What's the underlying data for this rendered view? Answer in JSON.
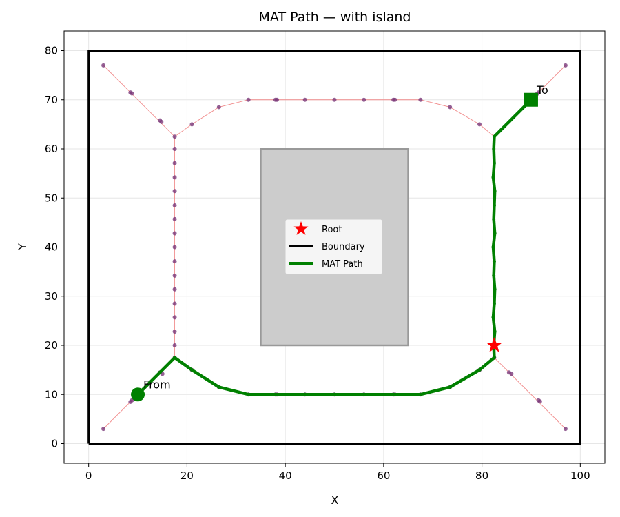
{
  "chart_data": {
    "type": "line",
    "title": "MAT Path — with island",
    "xlabel": "X",
    "ylabel": "Y",
    "xlim": [
      -5,
      105
    ],
    "ylim": [
      -4,
      84
    ],
    "xticks": [
      0,
      20,
      40,
      60,
      80,
      100
    ],
    "yticks": [
      0,
      10,
      20,
      30,
      40,
      50,
      60,
      70,
      80
    ],
    "grid": true,
    "legend_position": "center",
    "colors": {
      "boundary": "#000000",
      "island_fill": "#cccccc",
      "island_edge": "#999999",
      "skeleton_line": "#f08080",
      "skeleton_node": "#7b3a7a",
      "path": "#008000",
      "root": "#ff0000"
    },
    "boundary": [
      [
        0,
        0
      ],
      [
        100,
        0
      ],
      [
        100,
        80
      ],
      [
        0,
        80
      ],
      [
        0,
        0
      ]
    ],
    "island": [
      [
        35,
        20
      ],
      [
        65,
        20
      ],
      [
        65,
        60
      ],
      [
        35,
        60
      ],
      [
        35,
        20
      ]
    ],
    "skeleton_edges": [
      [
        [
          3,
          3
        ],
        [
          8.5,
          8.5
        ],
        [
          10,
          10
        ],
        [
          14.5,
          14.5
        ],
        [
          17.5,
          17.5
        ]
      ],
      [
        [
          17.5,
          17.5
        ],
        [
          21,
          15
        ],
        [
          26.5,
          11.5
        ],
        [
          32.5,
          10
        ],
        [
          38,
          10
        ],
        [
          44,
          10
        ],
        [
          50,
          10
        ],
        [
          56,
          10
        ],
        [
          62,
          10
        ],
        [
          67.5,
          10
        ],
        [
          73.5,
          11.5
        ],
        [
          79.5,
          15
        ],
        [
          82.5,
          17.5
        ]
      ],
      [
        [
          82.5,
          17.5
        ],
        [
          85.5,
          14.5
        ],
        [
          91.5,
          8.5
        ],
        [
          97,
          3
        ]
      ],
      [
        [
          17.5,
          17.5
        ],
        [
          17.5,
          20
        ],
        [
          17.5,
          22.8
        ],
        [
          17.5,
          25.7
        ],
        [
          17.5,
          28.5
        ],
        [
          17.5,
          31.4
        ],
        [
          17.5,
          34.2
        ],
        [
          17.5,
          37.1
        ],
        [
          17.5,
          40
        ],
        [
          17.5,
          42.8
        ],
        [
          17.5,
          45.7
        ],
        [
          17.5,
          48.5
        ],
        [
          17.5,
          51.4
        ],
        [
          17.5,
          54.2
        ],
        [
          17.5,
          57.1
        ],
        [
          17.5,
          60
        ],
        [
          17.5,
          62.5
        ]
      ],
      [
        [
          82.5,
          17.5
        ],
        [
          82.5,
          20
        ],
        [
          82.5,
          22.8
        ],
        [
          82.5,
          25.7
        ],
        [
          82.5,
          28.5
        ],
        [
          82.5,
          31.4
        ],
        [
          82.5,
          34.2
        ],
        [
          82.5,
          37.1
        ],
        [
          82.5,
          40
        ],
        [
          82.5,
          42.8
        ],
        [
          82.5,
          45.7
        ],
        [
          82.5,
          48.5
        ],
        [
          82.5,
          51.4
        ],
        [
          82.5,
          54.2
        ],
        [
          82.5,
          57.1
        ],
        [
          82.5,
          60
        ],
        [
          82.5,
          62.5
        ]
      ],
      [
        [
          3,
          77
        ],
        [
          8.5,
          71.5
        ],
        [
          14.5,
          65.5
        ],
        [
          17.5,
          62.5
        ]
      ],
      [
        [
          17.5,
          62.5
        ],
        [
          21,
          65
        ],
        [
          26.5,
          68.5
        ],
        [
          32.5,
          70
        ],
        [
          38,
          70
        ],
        [
          44,
          70
        ],
        [
          50,
          70
        ],
        [
          56,
          70
        ],
        [
          62,
          70
        ],
        [
          67.5,
          70
        ],
        [
          73.5,
          68.5
        ],
        [
          79.5,
          65
        ],
        [
          82.5,
          62.5
        ]
      ],
      [
        [
          82.5,
          62.5
        ],
        [
          85.5,
          65.5
        ],
        [
          91.5,
          71.5
        ],
        [
          97,
          77
        ]
      ]
    ],
    "skeleton_nodes": [
      [
        3,
        3
      ],
      [
        8.5,
        8.5
      ],
      [
        8.8,
        8.8
      ],
      [
        14.5,
        14.5
      ],
      [
        15,
        14.2
      ],
      [
        17.5,
        17.5
      ],
      [
        21,
        15
      ],
      [
        26.5,
        11.5
      ],
      [
        32.5,
        10
      ],
      [
        38,
        10
      ],
      [
        38.3,
        10
      ],
      [
        44,
        10
      ],
      [
        50,
        10
      ],
      [
        56,
        10
      ],
      [
        62,
        10
      ],
      [
        62.3,
        10
      ],
      [
        67.5,
        10
      ],
      [
        73.5,
        11.5
      ],
      [
        79.5,
        15
      ],
      [
        82.5,
        17.5
      ],
      [
        85.5,
        14.5
      ],
      [
        86,
        14.2
      ],
      [
        91.5,
        8.8
      ],
      [
        91.8,
        8.6
      ],
      [
        97,
        3
      ],
      [
        17.5,
        20
      ],
      [
        17.5,
        22.8
      ],
      [
        17.5,
        25.7
      ],
      [
        17.5,
        28.5
      ],
      [
        17.5,
        31.4
      ],
      [
        17.5,
        34.2
      ],
      [
        17.5,
        37.1
      ],
      [
        17.5,
        40
      ],
      [
        17.5,
        42.8
      ],
      [
        17.5,
        45.7
      ],
      [
        17.5,
        48.5
      ],
      [
        17.5,
        51.4
      ],
      [
        17.5,
        54.2
      ],
      [
        17.5,
        57.1
      ],
      [
        17.5,
        60
      ],
      [
        17.5,
        62.5
      ],
      [
        3,
        77
      ],
      [
        8.5,
        71.5
      ],
      [
        8.8,
        71.3
      ],
      [
        14.5,
        65.8
      ],
      [
        14.8,
        65.5
      ],
      [
        21,
        65
      ],
      [
        26.5,
        68.5
      ],
      [
        32.5,
        70
      ],
      [
        38,
        70
      ],
      [
        38.3,
        70
      ],
      [
        44,
        70
      ],
      [
        50,
        70
      ],
      [
        56,
        70
      ],
      [
        62,
        70
      ],
      [
        62.3,
        70
      ],
      [
        67.5,
        70
      ],
      [
        73.5,
        68.5
      ],
      [
        79.5,
        65
      ],
      [
        91.2,
        71.2
      ],
      [
        91.5,
        71.5
      ],
      [
        97,
        77
      ]
    ],
    "series": [
      {
        "name": "MAT Path",
        "points": [
          [
            10,
            10
          ],
          [
            14.5,
            14.5
          ],
          [
            17.5,
            17.5
          ],
          [
            21,
            15
          ],
          [
            26.5,
            11.5
          ],
          [
            32.5,
            10
          ],
          [
            38,
            10
          ],
          [
            44,
            10
          ],
          [
            50,
            10
          ],
          [
            56,
            10
          ],
          [
            62,
            10
          ],
          [
            67.5,
            10
          ],
          [
            73.5,
            11.5
          ],
          [
            79.5,
            15
          ],
          [
            82.5,
            17.5
          ],
          [
            82.4,
            20
          ],
          [
            82.6,
            22.8
          ],
          [
            82.3,
            25.7
          ],
          [
            82.5,
            28.5
          ],
          [
            82.6,
            31.4
          ],
          [
            82.4,
            34.2
          ],
          [
            82.5,
            37.1
          ],
          [
            82.3,
            40
          ],
          [
            82.6,
            42.8
          ],
          [
            82.4,
            45.7
          ],
          [
            82.5,
            48.5
          ],
          [
            82.6,
            51.4
          ],
          [
            82.3,
            54.2
          ],
          [
            82.5,
            57.1
          ],
          [
            82.4,
            60
          ],
          [
            82.5,
            62.5
          ],
          [
            85.5,
            65.5
          ],
          [
            90,
            70
          ]
        ],
        "markers": [
          [
            14.5,
            14.5
          ],
          [
            17.5,
            17.5
          ],
          [
            21,
            15
          ],
          [
            26.5,
            11.5
          ],
          [
            32.5,
            10
          ],
          [
            38,
            10
          ],
          [
            44,
            10
          ],
          [
            50,
            10
          ],
          [
            56,
            10
          ],
          [
            62,
            10
          ],
          [
            67.5,
            10
          ],
          [
            73.5,
            11.5
          ],
          [
            79.5,
            15
          ],
          [
            82.5,
            17.5
          ],
          [
            82.4,
            20
          ],
          [
            82.6,
            22.8
          ],
          [
            82.3,
            25.7
          ],
          [
            82.5,
            28.5
          ],
          [
            82.6,
            31.4
          ],
          [
            82.4,
            34.2
          ],
          [
            82.5,
            37.1
          ],
          [
            82.3,
            40
          ],
          [
            82.6,
            42.8
          ],
          [
            82.4,
            45.7
          ],
          [
            82.5,
            48.5
          ],
          [
            82.6,
            51.4
          ],
          [
            82.3,
            54.2
          ],
          [
            82.5,
            57.1
          ],
          [
            82.4,
            60
          ],
          [
            82.5,
            62.5
          ],
          [
            85.5,
            65.5
          ]
        ]
      }
    ],
    "start": {
      "point": [
        10,
        10
      ],
      "label": "From"
    },
    "end": {
      "point": [
        90,
        70
      ],
      "label": "To"
    },
    "root": {
      "point": [
        82.5,
        20
      ],
      "label": "Root"
    },
    "legend": [
      {
        "label": "Root"
      },
      {
        "label": "Boundary"
      },
      {
        "label": "MAT Path"
      }
    ]
  }
}
